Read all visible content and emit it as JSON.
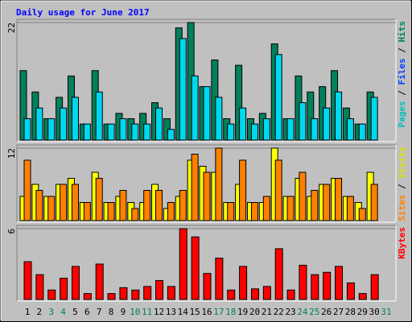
{
  "chart_data": [
    {
      "type": "bar",
      "title": "Daily usage for June 2017",
      "ylim": [
        0,
        22
      ],
      "yticks": [
        22
      ],
      "legend": [
        {
          "text": "Pages",
          "color": "#00c0c0"
        },
        {
          "text": "Files",
          "color": "#0040ff"
        },
        {
          "text": "Hits",
          "color": "#00805c"
        }
      ],
      "legend_separator": " / ",
      "series": [
        {
          "color": "#00805c",
          "values": [
            13,
            9,
            4,
            8,
            12,
            3,
            13,
            3,
            5,
            4,
            5,
            7,
            4,
            21,
            22,
            10,
            15,
            4,
            14,
            4,
            5,
            18,
            4,
            12,
            9,
            10,
            13,
            6,
            3,
            9,
            0
          ]
        },
        {
          "color": "#00d8f0",
          "values": [
            4,
            6,
            4,
            6,
            8,
            3,
            9,
            3,
            4,
            3,
            3,
            6,
            2,
            19,
            12,
            10,
            8,
            3,
            6,
            3,
            4,
            16,
            4,
            7,
            4,
            6,
            9,
            4,
            3,
            8,
            0
          ]
        }
      ]
    },
    {
      "type": "bar",
      "ylim": [
        0,
        12
      ],
      "yticks": [
        12
      ],
      "legend": [
        {
          "text": "Sites",
          "color": "#ff8000"
        },
        {
          "text": "Visits",
          "color": "#e0e000"
        }
      ],
      "legend_separator": " / ",
      "series": [
        {
          "color": "#ffff00",
          "values": [
            4,
            6,
            4,
            6,
            7,
            3,
            8,
            3,
            4,
            3,
            3,
            6,
            2,
            4,
            10,
            9,
            8,
            3,
            6,
            3,
            3,
            12,
            4,
            7,
            4,
            6,
            7,
            4,
            3,
            8,
            0
          ]
        },
        {
          "color": "#ff8000",
          "values": [
            10,
            5,
            4,
            6,
            6,
            3,
            7,
            3,
            5,
            2,
            5,
            5,
            3,
            5,
            11,
            8,
            12,
            3,
            10,
            3,
            4,
            10,
            4,
            8,
            5,
            6,
            7,
            4,
            2,
            6,
            0
          ]
        }
      ]
    },
    {
      "type": "bar",
      "ylim": [
        0,
        6
      ],
      "yticks": [
        6
      ],
      "legend": [
        {
          "text": "KBytes",
          "color": "#ff0000"
        }
      ],
      "legend_separator": " / ",
      "categories": [
        "1",
        "2",
        "3",
        "4",
        "5",
        "6",
        "7",
        "8",
        "9",
        "10",
        "11",
        "12",
        "13",
        "14",
        "15",
        "16",
        "17",
        "18",
        "19",
        "20",
        "21",
        "22",
        "23",
        "24",
        "25",
        "26",
        "27",
        "28",
        "29",
        "30",
        "31"
      ],
      "category_colors": [
        "#000000",
        "#000000",
        "#00805c",
        "#00805c",
        "#000000",
        "#000000",
        "#000000",
        "#000000",
        "#000000",
        "#00805c",
        "#00805c",
        "#000000",
        "#000000",
        "#000000",
        "#000000",
        "#000000",
        "#00805c",
        "#00805c",
        "#000000",
        "#000000",
        "#000000",
        "#000000",
        "#000000",
        "#00805c",
        "#00805c",
        "#000000",
        "#000000",
        "#000000",
        "#000000",
        "#000000",
        "#00805c"
      ],
      "series": [
        {
          "color": "#ff0000",
          "values": [
            3.2,
            2.1,
            0.8,
            1.8,
            2.8,
            0.5,
            3,
            0.5,
            1,
            0.8,
            1.1,
            1.6,
            1.1,
            6,
            5.3,
            2.2,
            3.5,
            0.8,
            2.8,
            0.9,
            1.1,
            4.3,
            0.8,
            2.9,
            2.1,
            2.3,
            2.8,
            1.4,
            0.5,
            2.1,
            0
          ]
        }
      ]
    }
  ]
}
